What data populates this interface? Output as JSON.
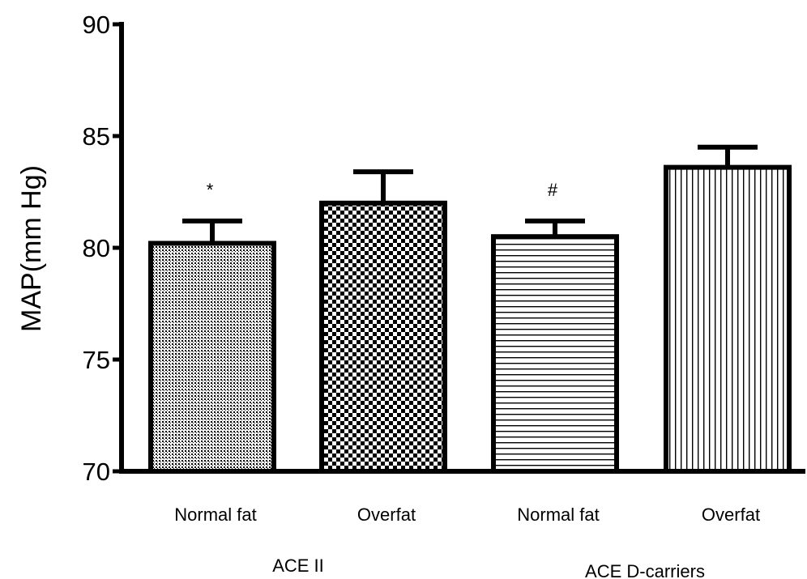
{
  "chart_data": {
    "type": "bar",
    "ylabel": "MAP(mm Hg)",
    "ylim": [
      70,
      90
    ],
    "yticks": [
      "70",
      "75",
      "80",
      "85",
      "90"
    ],
    "categories": [
      "Normal fat",
      "Overfat",
      "Normal fat",
      "Overfat"
    ],
    "groups": [
      {
        "label": "ACE II",
        "categories": [
          0,
          1
        ]
      },
      {
        "label": "ACE D-carriers",
        "categories": [
          2,
          3
        ]
      }
    ],
    "values": [
      80.2,
      82.0,
      80.5,
      83.6
    ],
    "errors": [
      1.0,
      1.4,
      0.7,
      0.9
    ],
    "annotations": [
      "*",
      "",
      "#",
      ""
    ],
    "patterns": [
      "fine-dots",
      "checkerboard",
      "horizontal-lines",
      "vertical-lines"
    ],
    "grid": false,
    "legend": "none"
  }
}
